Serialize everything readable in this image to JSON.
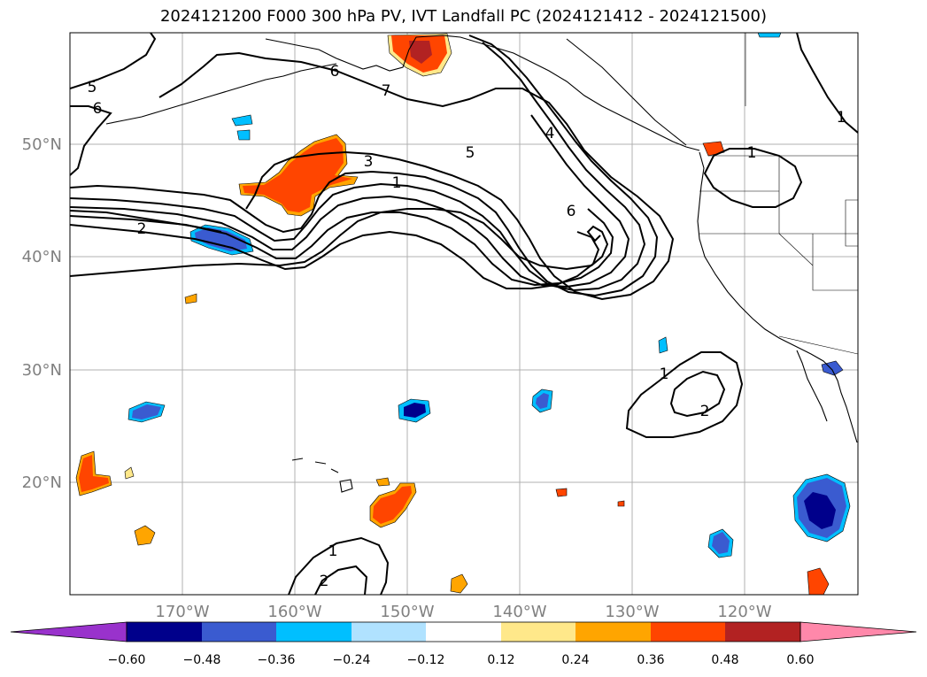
{
  "title": "2024121200 F000 300 hPa PV, IVT Landfall PC (2024121412 - 2024121500)",
  "lat_labels": [
    "50°N",
    "40°N",
    "30°N",
    "20°N"
  ],
  "lon_labels": [
    "170°W",
    "160°W",
    "150°W",
    "140°W",
    "130°W",
    "120°W"
  ],
  "contour_labels": [
    "5",
    "6",
    "6",
    "7",
    "5",
    "3",
    "1",
    "4",
    "6",
    "2",
    "1",
    "1",
    "2",
    "1",
    "2",
    "1"
  ],
  "colorbar": {
    "ticks": [
      "−0.60",
      "−0.48",
      "−0.36",
      "−0.24",
      "−0.12",
      "0.12",
      "0.24",
      "0.36",
      "0.48",
      "0.60"
    ],
    "colors": [
      "#9932cc",
      "#00008b",
      "#3a5bd0",
      "#00bfff",
      "#b0e2ff",
      "#ffffff",
      "#ffe88a",
      "#ffa500",
      "#ff4500",
      "#b22222",
      "#ff88aa"
    ]
  },
  "colors": {
    "gridline": "#b0b0b0",
    "coastline": "#000000",
    "contour": "#000000",
    "neg_strong": "#00008b",
    "neg_mid": "#3a5bd0",
    "neg_light": "#00bfff",
    "pos_light": "#ffe88a",
    "pos_mid": "#ffa500",
    "pos_strong": "#ff4500",
    "pos_dark": "#b22222"
  }
}
